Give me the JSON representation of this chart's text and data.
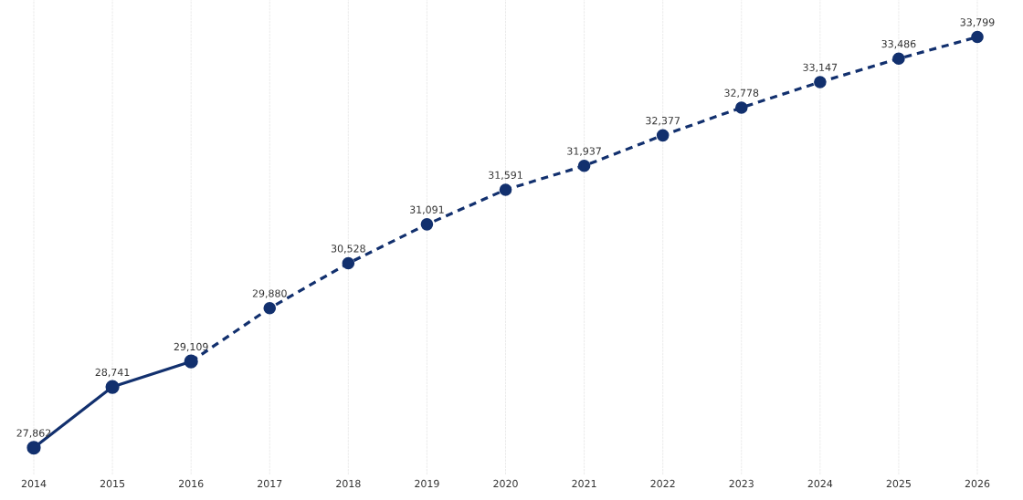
{
  "chart_data": {
    "type": "line",
    "categories": [
      "2014",
      "2015",
      "2016",
      "2017",
      "2018",
      "2019",
      "2020",
      "2021",
      "2022",
      "2023",
      "2024",
      "2025",
      "2026"
    ],
    "series": [
      {
        "color": "#12306e",
        "line_style": "solid",
        "values": [
          27862,
          28741,
          29109,
          null,
          null,
          null,
          null,
          null,
          null,
          null,
          null,
          null,
          null
        ],
        "value_labels": [
          "27,862",
          "28,741",
          "29,109",
          null,
          null,
          null,
          null,
          null,
          null,
          null,
          null,
          null,
          null
        ]
      },
      {
        "color": "#12306e",
        "line_style": "dashed",
        "values": [
          null,
          null,
          29109,
          29880,
          30528,
          31091,
          31591,
          31937,
          32377,
          32778,
          33147,
          33486,
          33799
        ],
        "value_labels": [
          null,
          null,
          null,
          "29,880",
          "30,528",
          "31,091",
          "31,591",
          "31,937",
          "32,377",
          "32,778",
          "33,147",
          "33,486",
          "33,799"
        ]
      }
    ],
    "marker": "circle",
    "grid": "x"
  }
}
